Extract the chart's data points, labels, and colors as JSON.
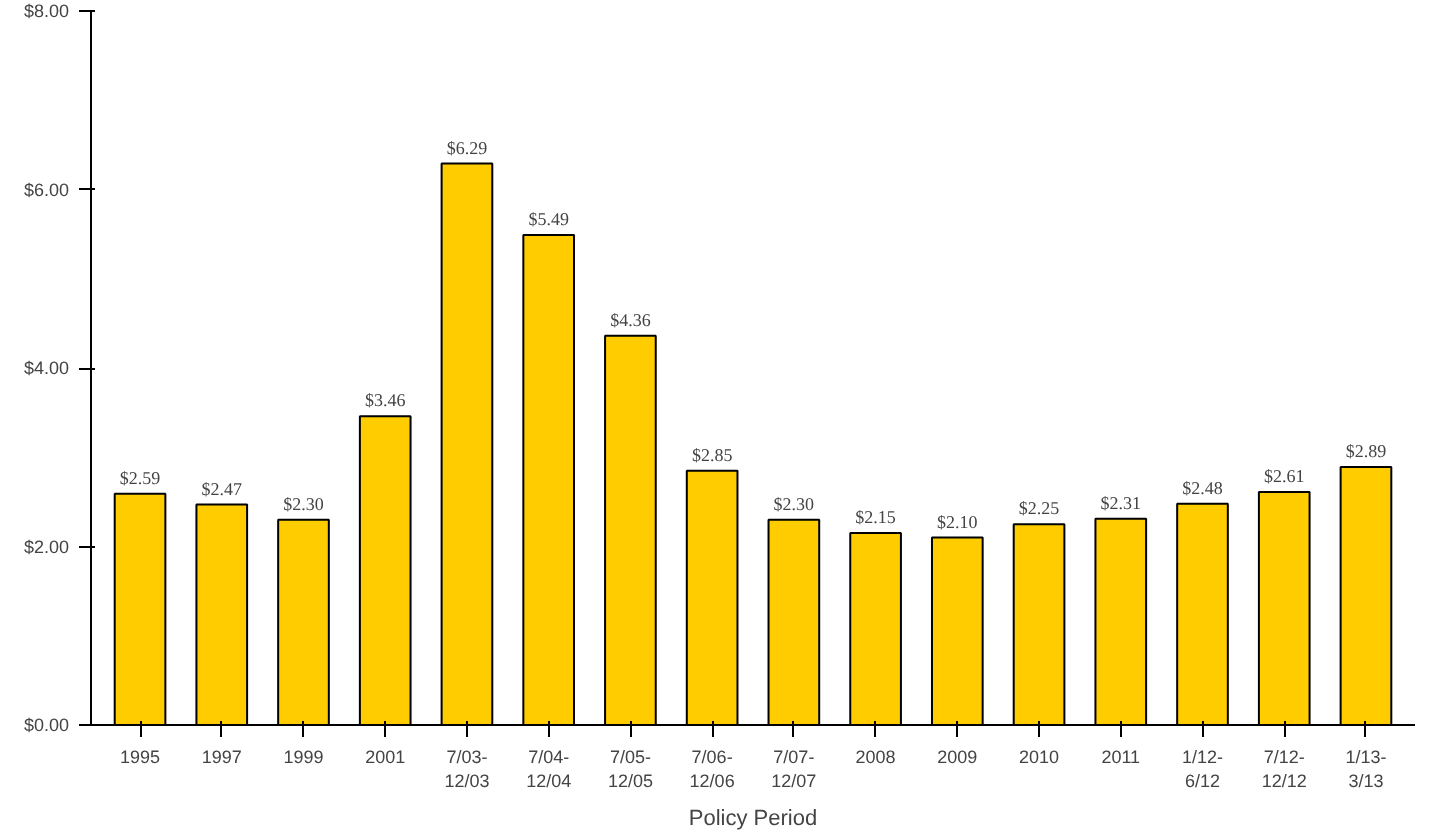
{
  "chart_data": {
    "type": "bar",
    "xlabel": "Policy Period",
    "categories": [
      "1995",
      "1997",
      "1999",
      "2001",
      "7/03-\n12/03",
      "7/04-\n12/04",
      "7/05-\n12/05",
      "7/06-\n12/06",
      "7/07-\n12/07",
      "2008",
      "2009",
      "2010",
      "2011",
      "1/12-\n6/12",
      "7/12-\n12/12",
      "1/13-\n3/13"
    ],
    "values": [
      2.59,
      2.47,
      2.3,
      3.46,
      6.29,
      5.49,
      4.36,
      2.85,
      2.3,
      2.15,
      2.1,
      2.25,
      2.31,
      2.48,
      2.61,
      2.89
    ],
    "value_labels": [
      "$2.59",
      "$2.47",
      "$2.30",
      "$3.46",
      "$6.29",
      "$5.49",
      "$4.36",
      "$2.85",
      "$2.30",
      "$2.15",
      "$2.10",
      "$2.25",
      "$2.31",
      "$2.48",
      "$2.61",
      "$2.89"
    ],
    "color": "#ffcc00",
    "ylim": [
      0,
      8
    ],
    "yticks": [
      {
        "value": 0,
        "label": "$0.00"
      },
      {
        "value": 2,
        "label": "$2.00"
      },
      {
        "value": 4,
        "label": "$4.00"
      },
      {
        "value": 6,
        "label": "$6.00"
      },
      {
        "value": 8,
        "label": "$8.00"
      }
    ],
    "grid": false
  }
}
